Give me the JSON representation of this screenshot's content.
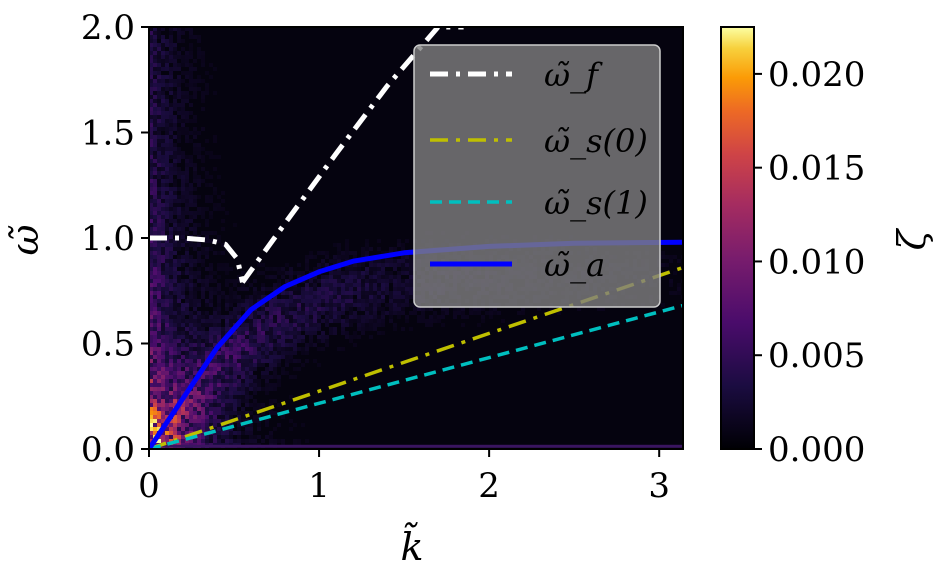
{
  "chart_data": {
    "type": "heatmap",
    "xlabel": "k̃",
    "ylabel": "ω̃",
    "xlim": [
      0,
      3.14
    ],
    "ylim": [
      0,
      2.0
    ],
    "x_ticks": [
      "0",
      "1",
      "2",
      "3"
    ],
    "y_ticks": [
      "0.0",
      "0.5",
      "1.0",
      "1.5",
      "2.0"
    ],
    "colorbar": {
      "label": "ζ",
      "range": [
        0.0,
        0.0225
      ],
      "ticks": [
        "0.000",
        "0.005",
        "0.010",
        "0.015",
        "0.020"
      ],
      "colormap": "inferno"
    },
    "legend_placement": "upper-right",
    "series": [
      {
        "name": "ω̃_f",
        "style": "dash-dot",
        "color": "#ffffff",
        "segments": [
          {
            "x": [
              0.0,
              0.2,
              0.35,
              0.45,
              0.52,
              0.55
            ],
            "y": [
              1.0,
              1.0,
              0.99,
              0.97,
              0.9,
              0.79
            ]
          },
          {
            "x": [
              0.55,
              0.8,
              1.1,
              1.4,
              1.7,
              1.85
            ],
            "y": [
              0.79,
              1.07,
              1.4,
              1.72,
              2.0,
              2.0
            ]
          }
        ]
      },
      {
        "name": "ω̃_s(0)",
        "style": "dash-dot",
        "color": "#bfbf00",
        "segments": [
          {
            "x": [
              0.0,
              3.14
            ],
            "y": [
              0.0,
              0.86
            ]
          }
        ]
      },
      {
        "name": "ω̃_s(1)",
        "style": "dashed",
        "color": "#00bfbf",
        "segments": [
          {
            "x": [
              0.0,
              3.14
            ],
            "y": [
              0.0,
              0.68
            ]
          }
        ]
      },
      {
        "name": "ω̃_a",
        "style": "solid",
        "color": "#0000ff",
        "segments": [
          {
            "x": [
              0.0,
              0.2,
              0.4,
              0.6,
              0.8,
              1.0,
              1.2,
              1.5,
              2.0,
              2.5,
              3.14
            ],
            "y": [
              0.0,
              0.24,
              0.48,
              0.66,
              0.77,
              0.84,
              0.89,
              0.93,
              0.96,
              0.975,
              0.98
            ]
          }
        ]
      }
    ]
  }
}
